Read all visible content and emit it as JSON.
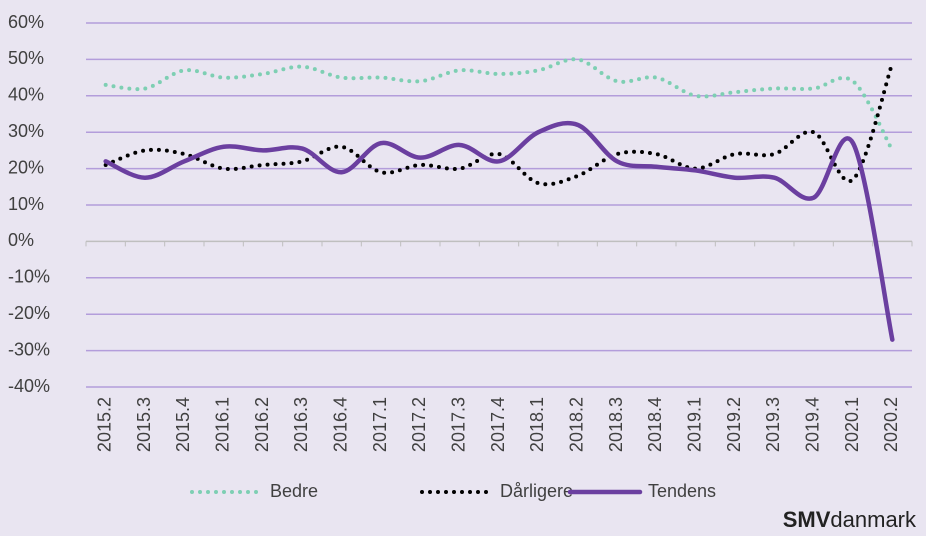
{
  "chart_data": {
    "type": "line",
    "categories": [
      "2015.2",
      "2015.3",
      "2015.4",
      "2016.1",
      "2016.2",
      "2016.3",
      "2016.4",
      "2017.1",
      "2017.2",
      "2017.3",
      "2017.4",
      "2018.1",
      "2018.2",
      "2018.3",
      "2018.4",
      "2019.1",
      "2019.2",
      "2019.3",
      "2019.4",
      "2020.1",
      "2020.2"
    ],
    "series": [
      {
        "name": "Bedre",
        "color": "#7ecfb3",
        "style": "dotted",
        "values": [
          43,
          42,
          47,
          45,
          46,
          48,
          45,
          45,
          44,
          47,
          46,
          47,
          50,
          44,
          45,
          40,
          41,
          42,
          42,
          44,
          25
        ]
      },
      {
        "name": "Dårligere",
        "color": "#000000",
        "style": "dotted",
        "values": [
          21,
          25,
          24,
          20,
          21,
          22,
          26,
          19,
          21,
          20,
          24,
          16,
          18,
          24,
          24,
          20,
          24,
          24,
          30,
          17,
          49
        ]
      },
      {
        "name": "Tendens",
        "color": "#6b3fa0",
        "style": "solid",
        "values": [
          22,
          17.5,
          22,
          26,
          25,
          25.5,
          19,
          27,
          23,
          26.5,
          22,
          30,
          32,
          22,
          20.5,
          19.5,
          17.5,
          17.5,
          12,
          27,
          -27
        ]
      }
    ],
    "ylim": [
      -40,
      60
    ],
    "yticks": [
      {
        "value": -40,
        "label": "-40%"
      },
      {
        "value": -30,
        "label": "-30%"
      },
      {
        "value": -20,
        "label": "-20%"
      },
      {
        "value": -10,
        "label": "-10%"
      },
      {
        "value": 0,
        "label": "0%"
      },
      {
        "value": 10,
        "label": "10%"
      },
      {
        "value": 20,
        "label": "20%"
      },
      {
        "value": 30,
        "label": "30%"
      },
      {
        "value": 40,
        "label": "40%"
      },
      {
        "value": 50,
        "label": "50%"
      },
      {
        "value": 60,
        "label": "60%"
      }
    ],
    "grid": true,
    "legend": "bottom",
    "logo": {
      "bold": "SMV",
      "rest": "danmark"
    }
  }
}
